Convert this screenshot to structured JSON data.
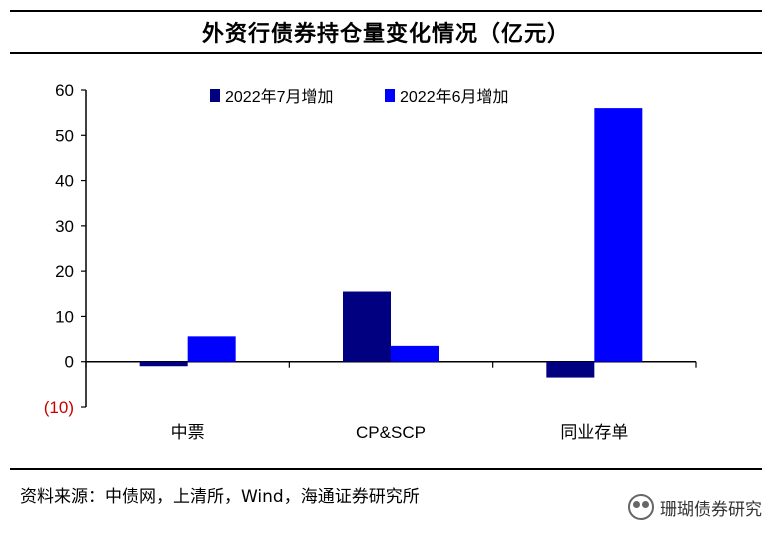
{
  "title": "外资行债券持仓量变化情况（亿元）",
  "source": "资料来源：中债网，上清所，Wind，海通证券研究所",
  "watermark": "珊瑚债券研究",
  "colors": {
    "series1": "#000080",
    "series2": "#0000FF",
    "negative_tick": "#CC0000"
  },
  "chart_data": {
    "type": "bar",
    "categories": [
      "中票",
      "CP&SCP",
      "同业存单"
    ],
    "series": [
      {
        "name": "2022年7月增加",
        "values": [
          -1,
          15.5,
          -3.5
        ]
      },
      {
        "name": "2022年6月增加",
        "values": [
          5.6,
          3.5,
          56
        ]
      }
    ],
    "ylim": [
      -10,
      60
    ],
    "yticks": [
      60,
      50,
      40,
      30,
      20,
      10,
      0,
      -10
    ],
    "ytick_labels": [
      "60",
      "50",
      "40",
      "30",
      "20",
      "10",
      "0",
      "(10)"
    ],
    "legend_position": "top",
    "grid": false
  }
}
